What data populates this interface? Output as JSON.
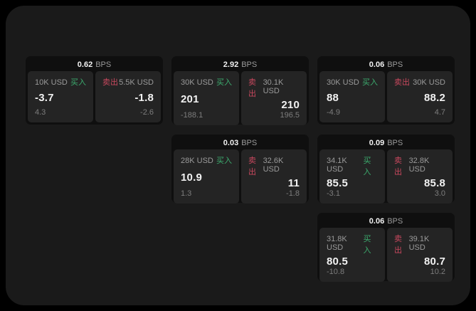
{
  "labels": {
    "bps_unit": "BPS",
    "buy": "买入",
    "sell": "卖出"
  },
  "colors": {
    "app_bg": "#1a1a1a",
    "card_bg": "#0f0f0f",
    "panel_bg": "#242424",
    "buy_green": "#3cab6e",
    "sell_red": "#c8485e",
    "text_primary": "#f2f2f2",
    "text_muted": "#9a9a9a",
    "text_dim": "#7d7d7d"
  },
  "cards": [
    {
      "bps": "0.62",
      "buy": {
        "notional": "10K USD",
        "price": "-3.7",
        "delta": "4.3"
      },
      "sell": {
        "notional": "5.5K USD",
        "price": "-1.8",
        "delta": "-2.6"
      }
    },
    {
      "bps": "2.92",
      "buy": {
        "notional": "30K USD",
        "price": "201",
        "delta": "-188.1"
      },
      "sell": {
        "notional": "30.1K USD",
        "price": "210",
        "delta": "196.5"
      }
    },
    {
      "bps": "0.06",
      "buy": {
        "notional": "30K USD",
        "price": "88",
        "delta": "-4.9"
      },
      "sell": {
        "notional": "30K USD",
        "price": "88.2",
        "delta": "4.7"
      }
    },
    {
      "bps": "0.03",
      "buy": {
        "notional": "28K USD",
        "price": "10.9",
        "delta": "1.3"
      },
      "sell": {
        "notional": "32.6K USD",
        "price": "11",
        "delta": "-1.8"
      }
    },
    {
      "bps": "0.09",
      "buy": {
        "notional": "34.1K USD",
        "price": "85.5",
        "delta": "-3.1"
      },
      "sell": {
        "notional": "32.8K USD",
        "price": "85.8",
        "delta": "3.0"
      }
    },
    {
      "bps": "0.06",
      "buy": {
        "notional": "31.8K USD",
        "price": "80.5",
        "delta": "-10.8"
      },
      "sell": {
        "notional": "39.1K USD",
        "price": "80.7",
        "delta": "10.2"
      }
    }
  ]
}
